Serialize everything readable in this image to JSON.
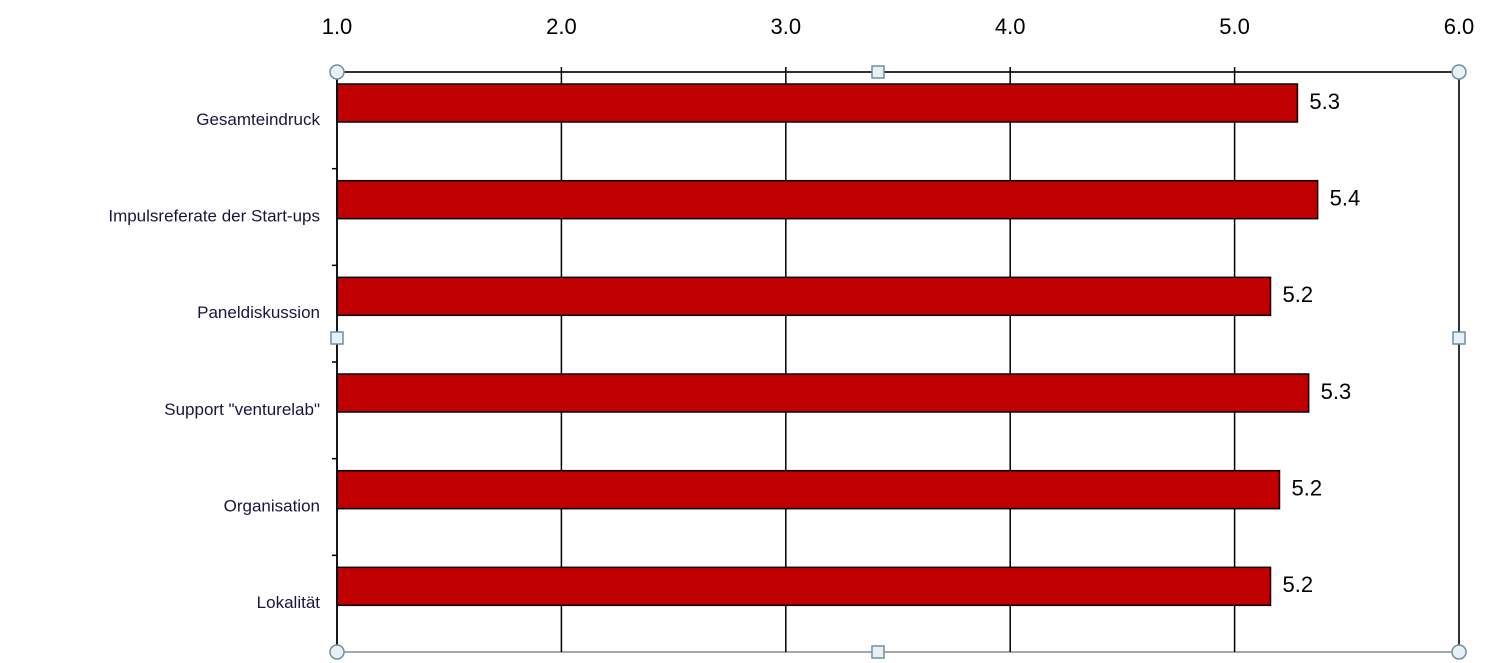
{
  "chart_data": {
    "type": "bar",
    "orientation": "horizontal",
    "categories": [
      "Gesamteindruck",
      "Impulsreferate der Start-ups",
      "Paneldiskussion",
      "Support \"venturelab\"",
      "Organisation",
      "Lokalität"
    ],
    "values": [
      5.28,
      5.37,
      5.16,
      5.33,
      5.2,
      5.16
    ],
    "value_labels": [
      "5.3",
      "5.4",
      "5.2",
      "5.3",
      "5.2",
      "5.2"
    ],
    "color": "#c00000",
    "xlim": [
      1,
      6
    ],
    "xticks": [
      {
        "value": 1,
        "label": "1.0"
      },
      {
        "value": 2,
        "label": "2.0"
      },
      {
        "value": 3,
        "label": "3.0"
      },
      {
        "value": 4,
        "label": "4.0"
      },
      {
        "value": 5,
        "label": "5.0"
      },
      {
        "value": 6,
        "label": "6.0"
      }
    ],
    "grid": true
  }
}
